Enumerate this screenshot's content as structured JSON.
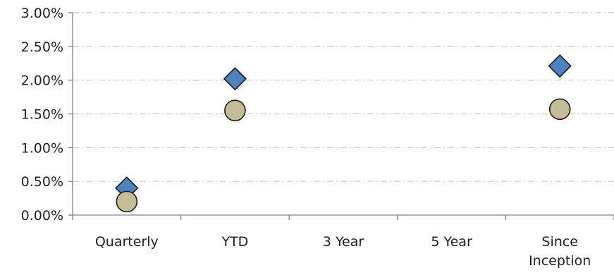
{
  "chart_data": {
    "type": "scatter",
    "categories": [
      [
        "Quarterly"
      ],
      [
        "YTD"
      ],
      [
        "3 Year"
      ],
      [
        "5 Year"
      ],
      [
        "Since",
        "Inception"
      ]
    ],
    "ylim": [
      0,
      3
    ],
    "y_ticks": [
      0,
      0.5,
      1,
      1.5,
      2,
      2.5,
      3
    ],
    "y_tick_labels": [
      "0.00%",
      "0.50%",
      "1.00%",
      "1.50%",
      "2.00%",
      "2.50%",
      "3.00%"
    ],
    "grid": true,
    "series": [
      {
        "marker": "diamond",
        "color": "#4F81BD",
        "values": [
          0.4,
          2.02,
          null,
          null,
          2.21
        ]
      },
      {
        "marker": "circle",
        "color": "#C4BD97",
        "values": [
          0.2,
          1.55,
          null,
          null,
          1.57
        ]
      }
    ]
  }
}
